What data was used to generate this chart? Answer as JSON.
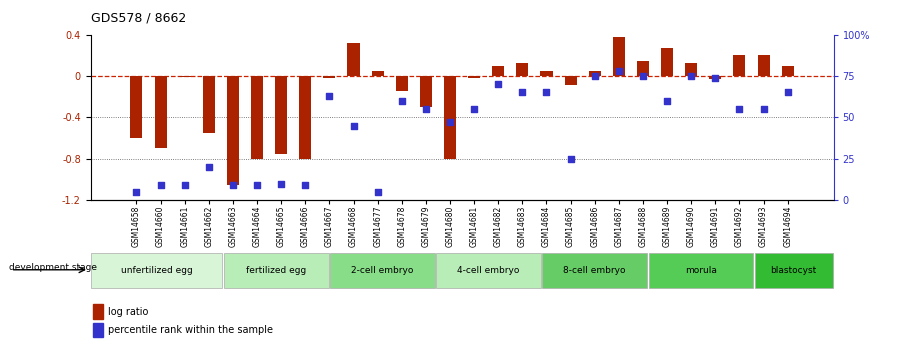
{
  "title": "GDS578 / 8662",
  "samples": [
    "GSM14658",
    "GSM14660",
    "GSM14661",
    "GSM14662",
    "GSM14663",
    "GSM14664",
    "GSM14665",
    "GSM14666",
    "GSM14667",
    "GSM14668",
    "GSM14677",
    "GSM14678",
    "GSM14679",
    "GSM14680",
    "GSM14681",
    "GSM14682",
    "GSM14683",
    "GSM14684",
    "GSM14685",
    "GSM14686",
    "GSM14687",
    "GSM14688",
    "GSM14689",
    "GSM14690",
    "GSM14691",
    "GSM14692",
    "GSM14693",
    "GSM14694"
  ],
  "log_ratio": [
    -0.6,
    -0.7,
    -0.01,
    -0.55,
    -1.05,
    -0.8,
    -0.75,
    -0.8,
    -0.02,
    0.32,
    0.05,
    -0.15,
    -0.3,
    -0.8,
    -0.02,
    0.1,
    0.12,
    0.05,
    -0.09,
    0.05,
    0.38,
    0.14,
    0.27,
    0.12,
    -0.03,
    0.2,
    0.2,
    0.1
  ],
  "percentile_rank": [
    5,
    9,
    9,
    20,
    9,
    9,
    10,
    9,
    63,
    45,
    5,
    60,
    55,
    47,
    55,
    70,
    65,
    65,
    25,
    75,
    78,
    75,
    60,
    75,
    74,
    55,
    55,
    65
  ],
  "stage_groups": [
    {
      "label": "unfertilized egg",
      "start": 0,
      "end": 5,
      "color": "#d8f5d8"
    },
    {
      "label": "fertilized egg",
      "start": 5,
      "end": 9,
      "color": "#b8edb8"
    },
    {
      "label": "2-cell embryo",
      "start": 9,
      "end": 13,
      "color": "#88dd88"
    },
    {
      "label": "4-cell embryo",
      "start": 13,
      "end": 17,
      "color": "#b8edb8"
    },
    {
      "label": "8-cell embryo",
      "start": 17,
      "end": 21,
      "color": "#66cc66"
    },
    {
      "label": "morula",
      "start": 21,
      "end": 25,
      "color": "#55cc55"
    },
    {
      "label": "blastocyst",
      "start": 25,
      "end": 28,
      "color": "#33bb33"
    }
  ],
  "ylim_left": [
    -1.2,
    0.4
  ],
  "ylim_right": [
    0,
    100
  ],
  "bar_color": "#aa2200",
  "dot_color": "#3333cc",
  "hline_color": "#cc2200",
  "dotted_line_color": "#555555",
  "bg_color": "#ffffff",
  "label_bg_even": "#dddddd",
  "label_bg_odd": "#eeeeee",
  "fig_width": 9.06,
  "fig_height": 3.45,
  "dpi": 100
}
